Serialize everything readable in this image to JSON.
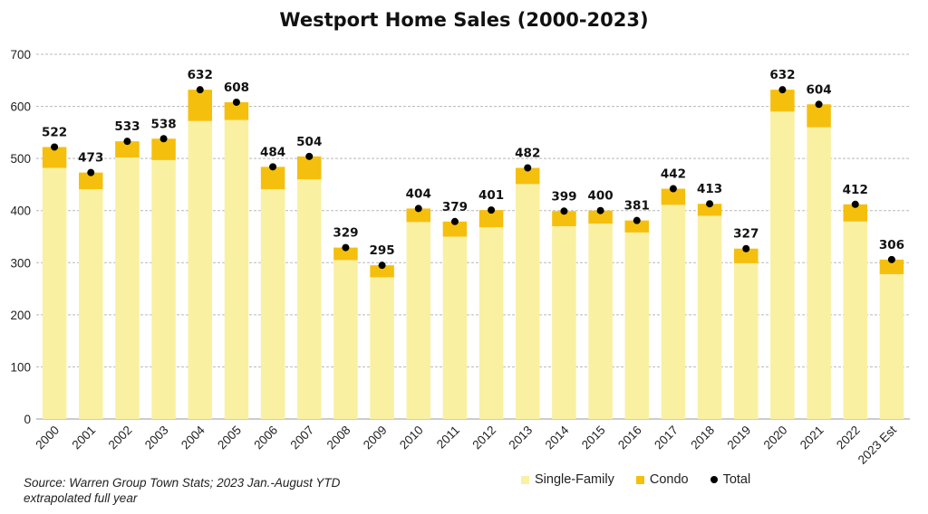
{
  "title": "Westport Home Sales (2000-2023)",
  "source_note": "Source: Warren Group Town Stats; 2023 Jan.-August YTD extrapolated full year",
  "legend": {
    "single_family": "Single-Family",
    "condo": "Condo",
    "total": "Total"
  },
  "colors": {
    "single_family": "#FAF0A2",
    "condo": "#F5BF0E",
    "total_marker": "#000000",
    "grid": "#b8b8b8"
  },
  "chart_data": {
    "type": "bar",
    "stacked": true,
    "title": "Westport Home Sales (2000-2023)",
    "categories": [
      "2000",
      "2001",
      "2002",
      "2003",
      "2004",
      "2005",
      "2006",
      "2007",
      "2008",
      "2009",
      "2010",
      "2011",
      "2012",
      "2013",
      "2014",
      "2015",
      "2016",
      "2017",
      "2018",
      "2019",
      "2020",
      "2021",
      "2022",
      "2023 Est"
    ],
    "y_ticks": [
      "0",
      "100",
      "200",
      "300",
      "400",
      "500",
      "600",
      "700"
    ],
    "ylim": [
      0,
      700
    ],
    "grid": true,
    "legend_position": "bottom-right",
    "series": [
      {
        "name": "Single-Family",
        "values": [
          482,
          441,
          502,
          497,
          572,
          574,
          441,
          460,
          305,
          272,
          378,
          350,
          368,
          451,
          370,
          375,
          358,
          411,
          390,
          299,
          590,
          560,
          379,
          278
        ]
      },
      {
        "name": "Condo",
        "values": [
          40,
          32,
          31,
          41,
          60,
          34,
          43,
          44,
          24,
          23,
          26,
          29,
          33,
          31,
          29,
          25,
          23,
          31,
          23,
          28,
          42,
          44,
          33,
          28
        ]
      },
      {
        "name": "Total",
        "values": [
          522,
          473,
          533,
          538,
          632,
          608,
          484,
          504,
          329,
          295,
          404,
          379,
          401,
          482,
          399,
          400,
          381,
          442,
          413,
          327,
          632,
          604,
          412,
          306
        ]
      }
    ]
  }
}
